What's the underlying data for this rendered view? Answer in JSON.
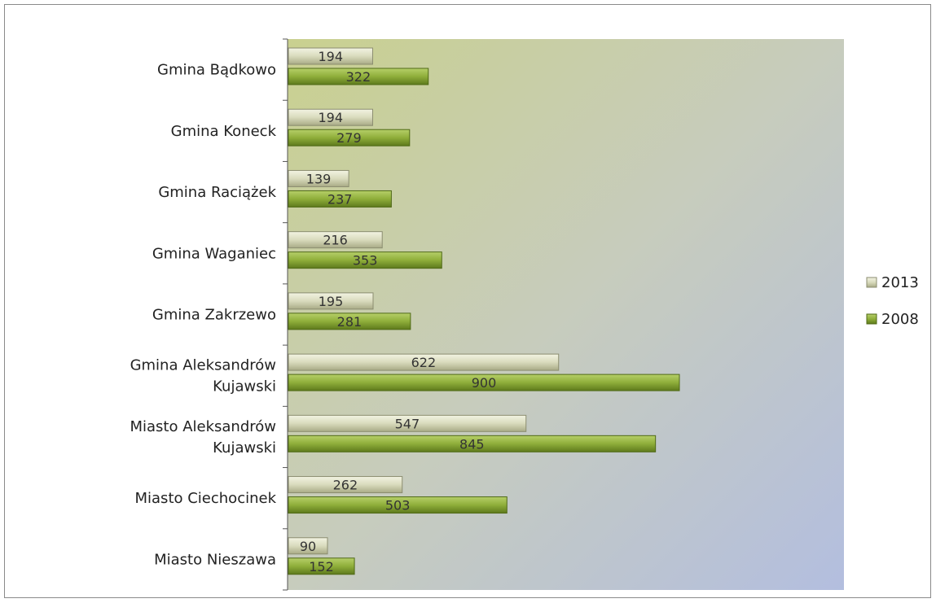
{
  "chart_data": {
    "type": "bar",
    "orientation": "horizontal",
    "categories": [
      "Gmina Bądkowo",
      "Gmina Koneck",
      "Gmina Raciążek",
      "Gmina Waganiec",
      "Gmina Zakrzewo",
      "Gmina Aleksandrów Kujawski",
      "Miasto Aleksandrów Kujawski",
      "Miasto Ciechocinek",
      "Miasto Nieszawa"
    ],
    "series": [
      {
        "name": "2013",
        "values": [
          194,
          194,
          139,
          216,
          195,
          622,
          547,
          262,
          90
        ],
        "color": "#d4d6b4"
      },
      {
        "name": "2008",
        "values": [
          322,
          279,
          237,
          353,
          281,
          900,
          845,
          503,
          152
        ],
        "color": "#8fae3a"
      }
    ],
    "xlim": [
      0,
      1140
    ],
    "grid": false,
    "legend_position": "right",
    "data_labels": true
  }
}
